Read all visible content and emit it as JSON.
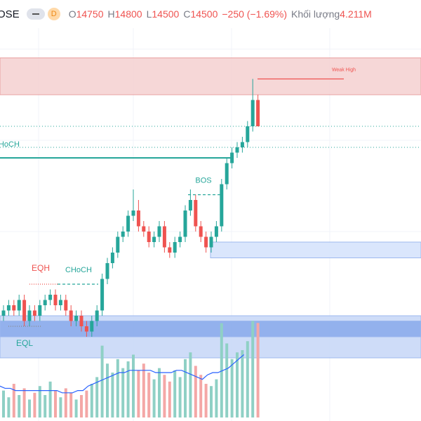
{
  "chart_data": {
    "type": "candlestick",
    "header": {
      "symbol": "OSE",
      "interval": "D",
      "items": [
        {
          "key": "O",
          "value": "14750"
        },
        {
          "key": "H",
          "value": "14800"
        },
        {
          "key": "L",
          "value": "14500"
        },
        {
          "key": "C",
          "value": "14500"
        },
        {
          "key": "",
          "value": "−250 (−1.69%)"
        },
        {
          "key": "Khối lượng",
          "value": "4.211M"
        }
      ]
    },
    "ylim": [
      11700,
      15700
    ],
    "volume_ylim": [
      0,
      18.6
    ],
    "up_color": "#26a69a",
    "down_color": "#ef5350",
    "volume_up_color": "#8fd0c5",
    "volume_down_color": "#f4a7a6",
    "volume_ma_color": "#2962ff",
    "open": [
      12700,
      12750,
      12800,
      12750,
      12850,
      12650,
      12750,
      12700,
      12800,
      12850,
      12900,
      12800,
      12850,
      12750,
      12650,
      12700,
      12600,
      12550,
      12650,
      12750,
      13050,
      13200,
      13300,
      13450,
      13500,
      13650,
      13700,
      13550,
      13500,
      13400,
      13450,
      13550,
      13350,
      13300,
      13400,
      13450,
      13700,
      13800,
      13550,
      13450,
      13350,
      13450,
      13550,
      13950,
      14150,
      14250,
      14300,
      14350,
      14500,
      14750
    ],
    "high": [
      12800,
      12850,
      12850,
      12900,
      12900,
      12800,
      12800,
      12850,
      12900,
      12950,
      12950,
      12900,
      12900,
      12800,
      12750,
      12750,
      12650,
      12700,
      12800,
      13100,
      13250,
      13350,
      13500,
      13550,
      13700,
      13900,
      13800,
      13600,
      13550,
      13500,
      13600,
      13600,
      13400,
      13450,
      13500,
      13750,
      13900,
      13850,
      13600,
      13500,
      13500,
      13600,
      14000,
      14200,
      14300,
      14350,
      14400,
      14550,
      14950,
      14800
    ],
    "low": [
      12650,
      12700,
      12700,
      12700,
      12600,
      12600,
      12650,
      12650,
      12750,
      12800,
      12750,
      12750,
      12700,
      12600,
      12600,
      12550,
      12500,
      12500,
      12600,
      12700,
      13000,
      13150,
      13250,
      13400,
      13450,
      13600,
      13500,
      13450,
      13350,
      13350,
      13400,
      13300,
      13250,
      13250,
      13350,
      13400,
      13650,
      13500,
      13400,
      13300,
      13300,
      13400,
      13500,
      13900,
      14100,
      14200,
      14250,
      14300,
      14450,
      14500
    ],
    "close": [
      12750,
      12800,
      12750,
      12850,
      12650,
      12750,
      12700,
      12800,
      12850,
      12900,
      12800,
      12850,
      12750,
      12650,
      12700,
      12600,
      12550,
      12650,
      12750,
      13050,
      13200,
      13300,
      13450,
      13500,
      13650,
      13700,
      13550,
      13500,
      13400,
      13450,
      13550,
      13350,
      13300,
      13400,
      13450,
      13700,
      13800,
      13550,
      13450,
      13350,
      13450,
      13550,
      13950,
      14150,
      14250,
      14300,
      14350,
      14500,
      14750,
      14500
    ],
    "volume": [
      1.2,
      0.9,
      1.5,
      1.0,
      1.3,
      0.8,
      1.1,
      1.4,
      1.0,
      1.6,
      1.2,
      0.9,
      1.3,
      1.1,
      0.8,
      1.0,
      1.2,
      1.5,
      1.8,
      3.2,
      2.4,
      2.0,
      2.6,
      2.2,
      2.5,
      2.8,
      2.1,
      2.4,
      2.0,
      1.7,
      2.2,
      1.9,
      1.6,
      2.1,
      1.8,
      2.6,
      2.9,
      2.3,
      1.9,
      1.5,
      1.4,
      1.7,
      4.2,
      3.3,
      2.6,
      2.9,
      3.0,
      3.4,
      4.3,
      4.211
    ],
    "volume_ma": [
      1.6,
      1.5,
      1.4,
      1.3,
      1.3,
      1.2,
      1.2,
      1.2,
      1.2,
      1.2,
      1.2,
      1.2,
      1.2,
      1.2,
      1.1,
      1.1,
      1.1,
      1.2,
      1.2,
      1.4,
      1.5,
      1.6,
      1.7,
      1.8,
      1.9,
      2.0,
      2.0,
      2.1,
      2.1,
      2.1,
      2.1,
      2.1,
      2.0,
      2.0,
      2.0,
      2.0,
      2.1,
      2.1,
      2.0,
      1.9,
      1.8,
      1.7,
      1.9,
      2.0,
      2.0,
      2.1,
      2.2,
      2.4,
      2.6,
      2.8
    ],
    "zones": [
      {
        "range": [
          14800,
          15150
        ],
        "color": "#f5d0d0"
      },
      {
        "range": [
          13250,
          13400
        ],
        "color": "#d4e2fb"
      },
      {
        "range": [
          12300,
          12700
        ],
        "color": "#c6d6f7"
      },
      {
        "range": [
          12500,
          12650
        ],
        "color": "#7fa3ea"
      }
    ],
    "price_lines": [
      14500,
      14300
    ],
    "annotations": [
      {
        "text": "Weak High",
        "value": 14950,
        "color": "#ef5350"
      },
      {
        "text": "CHoCH",
        "value": 14200,
        "color": "#26a69a"
      },
      {
        "text": "BOS",
        "value": 13850,
        "color": "#26a69a"
      },
      {
        "text": "CHoCH",
        "value": 13000,
        "color": "#26a69a"
      },
      {
        "text": "EQH",
        "value": 13000,
        "color": "#ef5350"
      },
      {
        "text": "EQL",
        "value": 12600,
        "color": "#26a69a"
      }
    ]
  }
}
